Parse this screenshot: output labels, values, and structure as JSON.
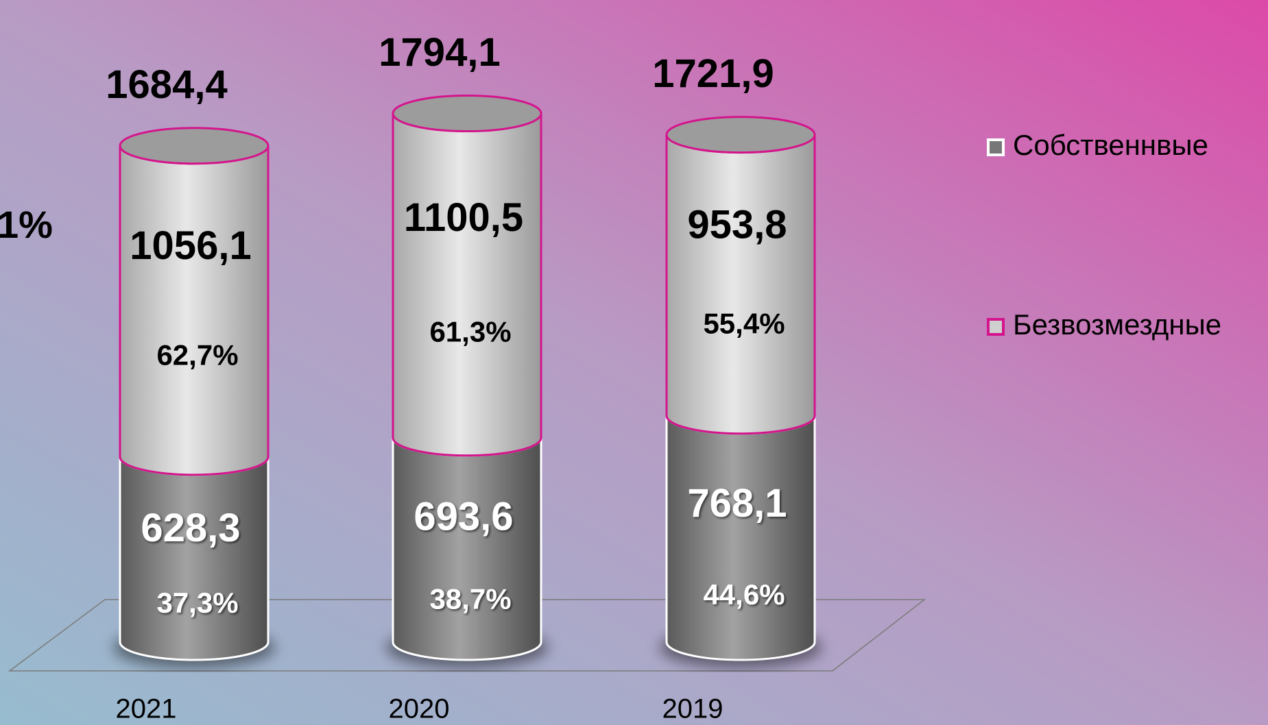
{
  "chart_data": {
    "type": "bar",
    "stacked": true,
    "categories": [
      "2021",
      "2020",
      "2019"
    ],
    "series": [
      {
        "name": "Собственнвые",
        "color": "#7a7a7a",
        "outline": "#ffffff",
        "values": [
          628.3,
          693.6,
          768.1
        ],
        "value_labels": [
          "628,3",
          "693,6",
          "768,1"
        ],
        "share_labels": [
          "37,3%",
          "38,7%",
          "44,6%"
        ]
      },
      {
        "name": "Безвозмездные",
        "color": "#cfcfcf",
        "outline": "#d4148c",
        "values": [
          1056.1,
          1100.5,
          953.8
        ],
        "value_labels": [
          "1056,1",
          "1100,5",
          "953,8"
        ],
        "share_labels": [
          "62,7%",
          "61,3%",
          "55,4%"
        ]
      }
    ],
    "totals": [
      1684.4,
      1794.1,
      1721.9
    ],
    "total_labels": [
      "1684,4",
      "1794,1",
      "1721,9"
    ],
    "annotation": "1%"
  }
}
